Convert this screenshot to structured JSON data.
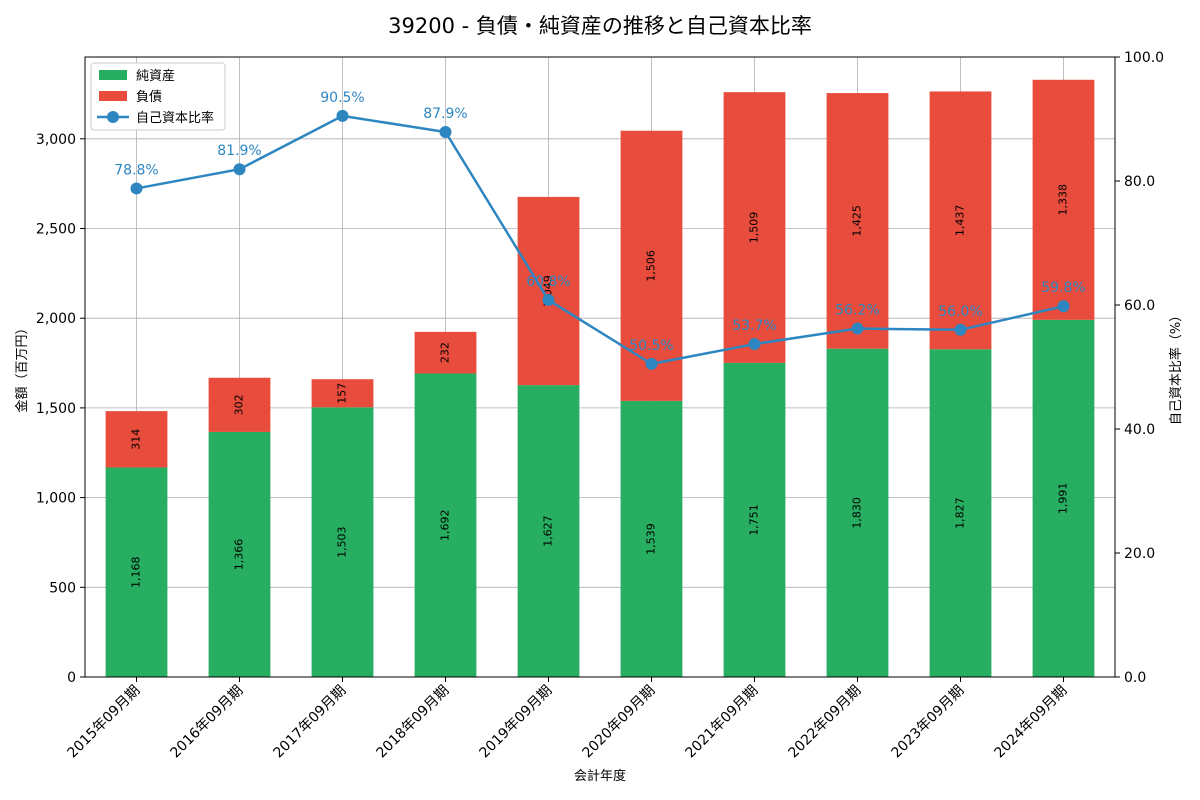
{
  "chart_data": {
    "type": "bar",
    "title": "39200 - 負債・純資産の推移と自己資本比率",
    "xlabel": "会計年度",
    "ylabel": "金額（百万円）",
    "y2label": "自己資本比率（%）",
    "ylim": [
      0,
      3456
    ],
    "y2lim": [
      0,
      100
    ],
    "yticks": [
      0,
      500,
      1000,
      1500,
      2000,
      2500,
      3000
    ],
    "yticklabels": [
      "0",
      "500",
      "1,000",
      "1,500",
      "2,000",
      "2,500",
      "3,000"
    ],
    "y2ticks": [
      0,
      20,
      40,
      60,
      80,
      100
    ],
    "y2ticklabels": [
      "0.0",
      "20.0",
      "40.0",
      "60.0",
      "80.0",
      "100.0"
    ],
    "grid": true,
    "legend_position": "top-left",
    "categories": [
      "2015年09月期",
      "2016年09月期",
      "2017年09月期",
      "2018年09月期",
      "2019年09月期",
      "2020年09月期",
      "2021年09月期",
      "2022年09月期",
      "2023年09月期",
      "2024年09月期"
    ],
    "series": [
      {
        "name": "純資産",
        "kind": "bar",
        "color": "#27ae60",
        "values": [
          1168,
          1366,
          1503,
          1692,
          1627,
          1539,
          1751,
          1830,
          1827,
          1991
        ],
        "labels": [
          "1,168",
          "1,366",
          "1,503",
          "1,692",
          "1,627",
          "1,539",
          "1,751",
          "1,830",
          "1,827",
          "1,991"
        ]
      },
      {
        "name": "負債",
        "kind": "bar",
        "color": "#e74c3c",
        "values": [
          314,
          302,
          157,
          232,
          1049,
          1506,
          1509,
          1425,
          1437,
          1338
        ],
        "labels": [
          "314",
          "302",
          "157",
          "232",
          "1,049",
          "1,506",
          "1,509",
          "1,425",
          "1,437",
          "1,338"
        ]
      },
      {
        "name": "自己資本比率",
        "kind": "line",
        "color": "#2e86c1",
        "values": [
          78.8,
          81.9,
          90.5,
          87.9,
          60.8,
          50.5,
          53.7,
          56.2,
          56.0,
          59.8
        ],
        "labels": [
          "78.8%",
          "81.9%",
          "90.5%",
          "87.9%",
          "60.8%",
          "50.5%",
          "53.7%",
          "56.2%",
          "56.0%",
          "59.8%"
        ]
      }
    ]
  }
}
